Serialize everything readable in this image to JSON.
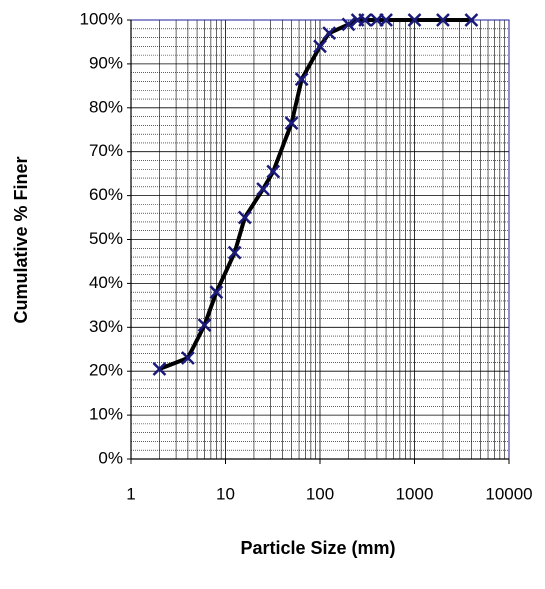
{
  "chart_data": {
    "type": "line",
    "x_label": "Particle Size (mm)",
    "y_label": "Cumulative % Finer",
    "x": [
      2,
      4,
      6,
      8,
      12.5,
      16,
      25,
      32,
      50,
      64,
      100,
      125,
      200,
      250,
      300,
      400,
      500,
      1000,
      2000,
      4000
    ],
    "series": [
      {
        "color": "#000000",
        "marker_color": "#1a1a7a",
        "values": [
          20.5,
          23,
          30.5,
          38,
          47,
          55,
          61.5,
          65.5,
          76.5,
          86.5,
          94,
          97,
          99,
          100,
          100,
          100,
          100,
          100,
          100,
          100
        ]
      }
    ],
    "x_log": true,
    "xlim": [
      1,
      10000
    ],
    "xticks": [
      1,
      10,
      100,
      1000,
      10000
    ],
    "ylim": [
      0,
      100
    ],
    "yticks": [
      {
        "value": 0,
        "label": "0%"
      },
      {
        "value": 10,
        "label": "10%"
      },
      {
        "value": 20,
        "label": "20%"
      },
      {
        "value": 30,
        "label": "30%"
      },
      {
        "value": 40,
        "label": "40%"
      },
      {
        "value": 50,
        "label": "50%"
      },
      {
        "value": 60,
        "label": "60%"
      },
      {
        "value": 70,
        "label": "70%"
      },
      {
        "value": 80,
        "label": "80%"
      },
      {
        "value": 90,
        "label": "90%"
      },
      {
        "value": 100,
        "label": "100%"
      }
    ],
    "grid": true,
    "border_color": "#1f1fa0"
  }
}
